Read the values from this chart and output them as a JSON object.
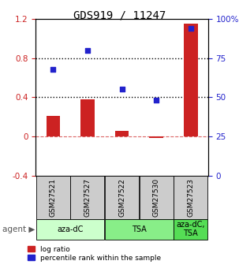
{
  "title": "GDS919 / 11247",
  "samples": [
    "GSM27521",
    "GSM27527",
    "GSM27522",
    "GSM27530",
    "GSM27523"
  ],
  "log_ratio": [
    0.21,
    0.38,
    0.055,
    -0.02,
    1.15
  ],
  "percentile_rank": [
    68,
    80,
    55,
    48,
    94
  ],
  "bar_color": "#cc2222",
  "dot_color": "#2222cc",
  "agent_groups": [
    {
      "label": "aza-dC",
      "span": [
        0,
        2
      ],
      "color": "#ccffcc"
    },
    {
      "label": "TSA",
      "span": [
        2,
        4
      ],
      "color": "#88ee88"
    },
    {
      "label": "aza-dC,\nTSA",
      "span": [
        4,
        5
      ],
      "color": "#55dd55"
    }
  ],
  "ylim_left": [
    -0.4,
    1.2
  ],
  "ylim_right": [
    0,
    100
  ],
  "yticks_left": [
    -0.4,
    0.0,
    0.4,
    0.8,
    1.2
  ],
  "ytick_labels_left": [
    "-0.4",
    "0",
    "0.4",
    "0.8",
    "1.2"
  ],
  "yticks_right": [
    0,
    25,
    50,
    75,
    100
  ],
  "ytick_labels_right": [
    "0",
    "25",
    "50",
    "75",
    "100%"
  ],
  "sample_box_color": "#cccccc",
  "bar_width": 0.4
}
